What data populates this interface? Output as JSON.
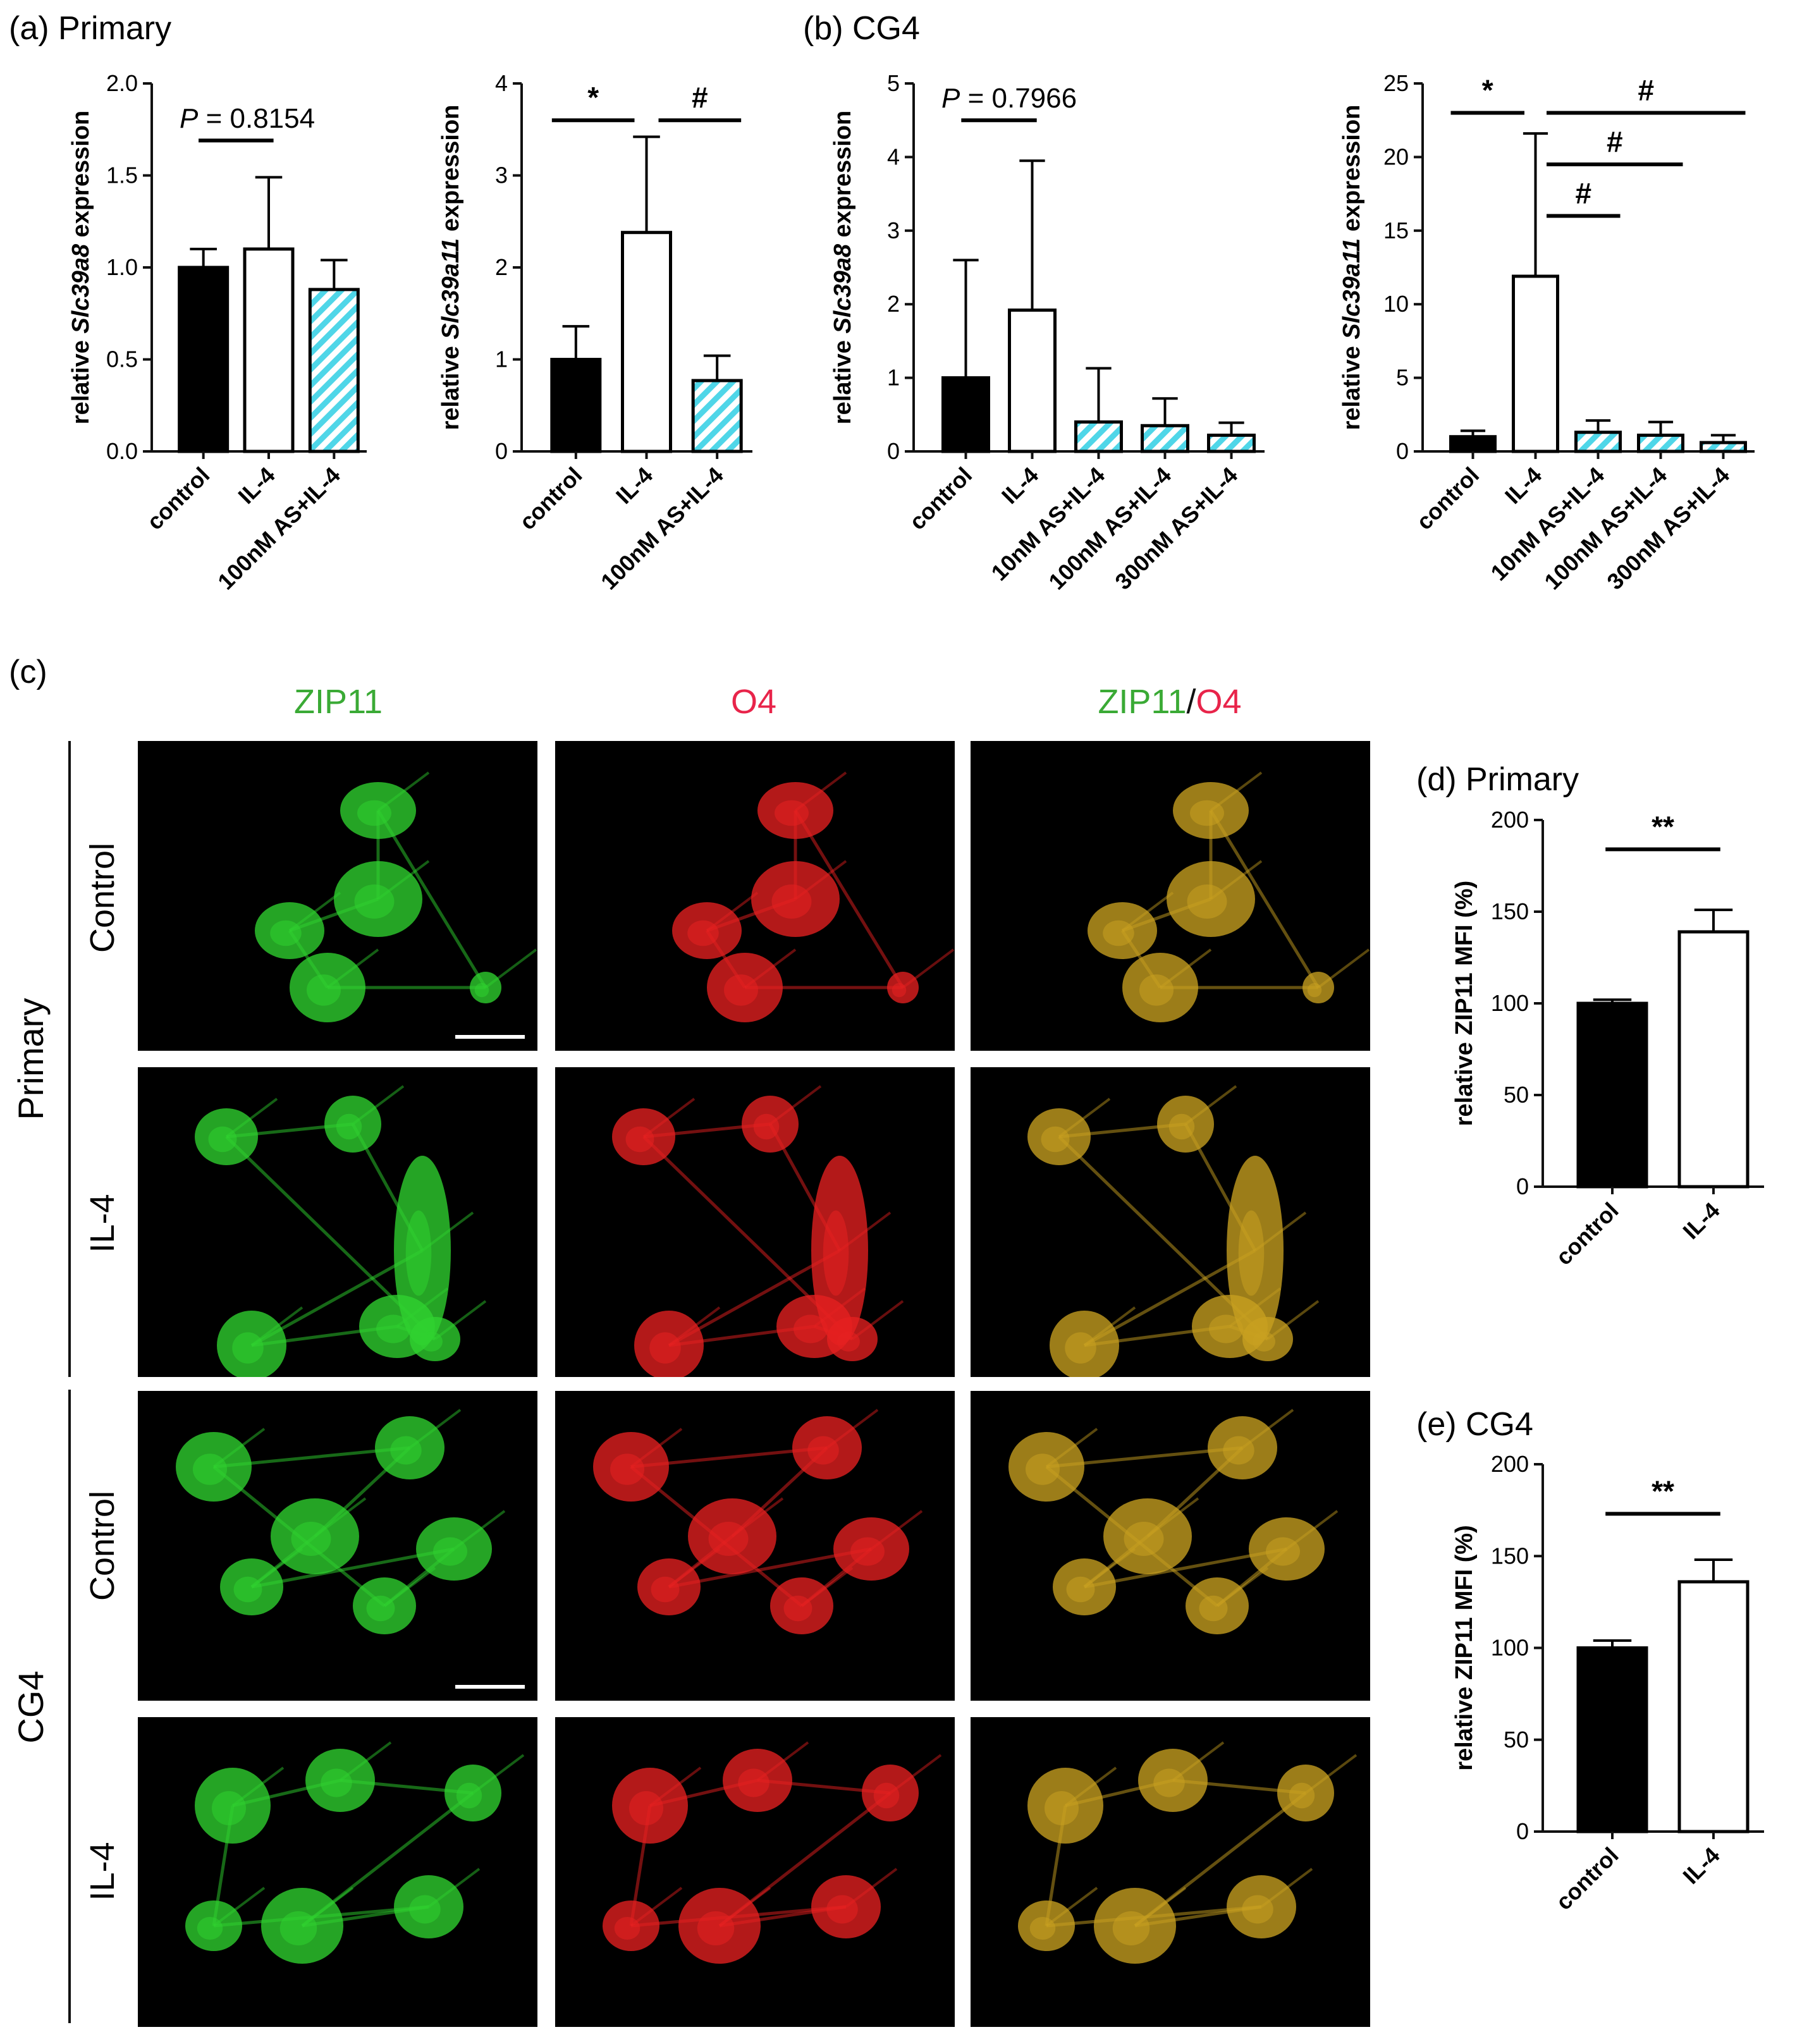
{
  "panel_labels": {
    "a": "(a) Primary",
    "b": "(b) CG4",
    "c": "(c)",
    "d": "(d) Primary",
    "e": "(e) CG4"
  },
  "micrograph": {
    "column_headers": [
      {
        "parts": [
          {
            "text": "ZIP11",
            "color": "#3aaa35"
          }
        ]
      },
      {
        "parts": [
          {
            "text": "O4",
            "color": "#e8244a"
          }
        ]
      },
      {
        "parts": [
          {
            "text": "ZIP11",
            "color": "#3aaa35"
          },
          {
            "text": "/",
            "color": "#111111"
          },
          {
            "text": "O4",
            "color": "#e8244a"
          }
        ]
      }
    ],
    "groups": [
      {
        "name": "Primary",
        "rows": [
          "Control",
          "IL-4"
        ]
      },
      {
        "name": "CG4",
        "rows": [
          "Control",
          "IL-4"
        ]
      }
    ],
    "channel_colors": {
      "ZIP11": "#2fd22f",
      "O4": "#e62020",
      "merge": "#c8a020"
    }
  },
  "chart_data": [
    {
      "id": "a1",
      "type": "bar",
      "categories": [
        "control",
        "IL-4",
        "100nM AS+IL-4"
      ],
      "values": [
        1.0,
        1.1,
        0.88
      ],
      "errors": [
        0.1,
        0.39,
        0.16
      ],
      "fills": [
        "black",
        "white",
        "hatch"
      ],
      "ylabel_pre": "relative ",
      "ylabel_gene": "Slc39a8",
      "ylabel_post": " expression",
      "ylim": [
        0,
        2.0
      ],
      "yticks": [
        "0.0",
        "0.5",
        "1.0",
        "1.5",
        "2.0"
      ],
      "annotations": [
        {
          "text": "P = 0.8154",
          "from": 0,
          "to": 1,
          "y": 1.69,
          "italic_p": true
        }
      ]
    },
    {
      "id": "a2",
      "type": "bar",
      "categories": [
        "control",
        "IL-4",
        "100nM AS+IL-4"
      ],
      "values": [
        1.0,
        2.38,
        0.77
      ],
      "errors": [
        0.36,
        1.04,
        0.27
      ],
      "fills": [
        "black",
        "white",
        "hatch"
      ],
      "ylabel_pre": "relative ",
      "ylabel_gene": "Slc39a11",
      "ylabel_post": " expression",
      "ylim": [
        0,
        4
      ],
      "yticks": [
        "0",
        "1",
        "2",
        "3",
        "4"
      ],
      "annotations": [
        {
          "text": "*",
          "from": 0,
          "to": 1,
          "y": 3.6
        },
        {
          "text": "#",
          "from": 1,
          "to": 2,
          "y": 3.6
        }
      ]
    },
    {
      "id": "b1",
      "type": "bar",
      "categories": [
        "control",
        "IL-4",
        "10nM AS+IL-4",
        "100nM AS+IL-4",
        "300nM AS+IL-4"
      ],
      "values": [
        1.0,
        1.92,
        0.4,
        0.35,
        0.22
      ],
      "errors": [
        1.6,
        2.03,
        0.73,
        0.37,
        0.17
      ],
      "fills": [
        "black",
        "white",
        "hatch",
        "hatch",
        "hatch"
      ],
      "ylabel_pre": "relative ",
      "ylabel_gene": "Slc39a8",
      "ylabel_post": " expression",
      "ylim": [
        0,
        5
      ],
      "yticks": [
        "0",
        "1",
        "2",
        "3",
        "4",
        "5"
      ],
      "annotations": [
        {
          "text": "P = 0.7966",
          "from": 0,
          "to": 1,
          "y": 4.5,
          "italic_p": true
        }
      ]
    },
    {
      "id": "b2",
      "type": "bar",
      "categories": [
        "control",
        "IL-4",
        "10nM AS+IL-4",
        "100nM AS+IL-4",
        "300nM AS+IL-4"
      ],
      "values": [
        1.0,
        11.9,
        1.3,
        1.1,
        0.6
      ],
      "errors": [
        0.4,
        9.7,
        0.8,
        0.9,
        0.5
      ],
      "fills": [
        "black",
        "white",
        "hatch",
        "hatch",
        "hatch"
      ],
      "ylabel_pre": "relative ",
      "ylabel_gene": "Slc39a11",
      "ylabel_post": " expression",
      "ylim": [
        0,
        25
      ],
      "yticks": [
        "0",
        "5",
        "10",
        "15",
        "20",
        "25"
      ],
      "annotations": [
        {
          "text": "*",
          "from": 0,
          "to": 1,
          "y": 23.0
        },
        {
          "text": "#",
          "from": 1,
          "to": 4,
          "y": 23.0
        },
        {
          "text": "#",
          "from": 1,
          "to": 3,
          "y": 19.5
        },
        {
          "text": "#",
          "from": 1,
          "to": 2,
          "y": 16.0
        }
      ]
    },
    {
      "id": "d",
      "type": "bar",
      "categories": [
        "control",
        "IL-4"
      ],
      "values": [
        100,
        139
      ],
      "errors": [
        2,
        12
      ],
      "fills": [
        "black",
        "white"
      ],
      "ylabel_pre": "relative ZIP11 MFI (%)",
      "ylabel_gene": "",
      "ylabel_post": "",
      "ylim": [
        0,
        200
      ],
      "yticks": [
        "0",
        "50",
        "100",
        "150",
        "200"
      ],
      "annotations": [
        {
          "text": "**",
          "from": 0,
          "to": 1,
          "y": 184
        }
      ]
    },
    {
      "id": "e",
      "type": "bar",
      "categories": [
        "control",
        "IL-4"
      ],
      "values": [
        100,
        136
      ],
      "errors": [
        4,
        12
      ],
      "fills": [
        "black",
        "white"
      ],
      "ylabel_pre": "relative ZIP11 MFI (%)",
      "ylabel_gene": "",
      "ylabel_post": "",
      "ylim": [
        0,
        200
      ],
      "yticks": [
        "0",
        "50",
        "100",
        "150",
        "200"
      ],
      "annotations": [
        {
          "text": "**",
          "from": 0,
          "to": 1,
          "y": 173
        }
      ]
    }
  ]
}
